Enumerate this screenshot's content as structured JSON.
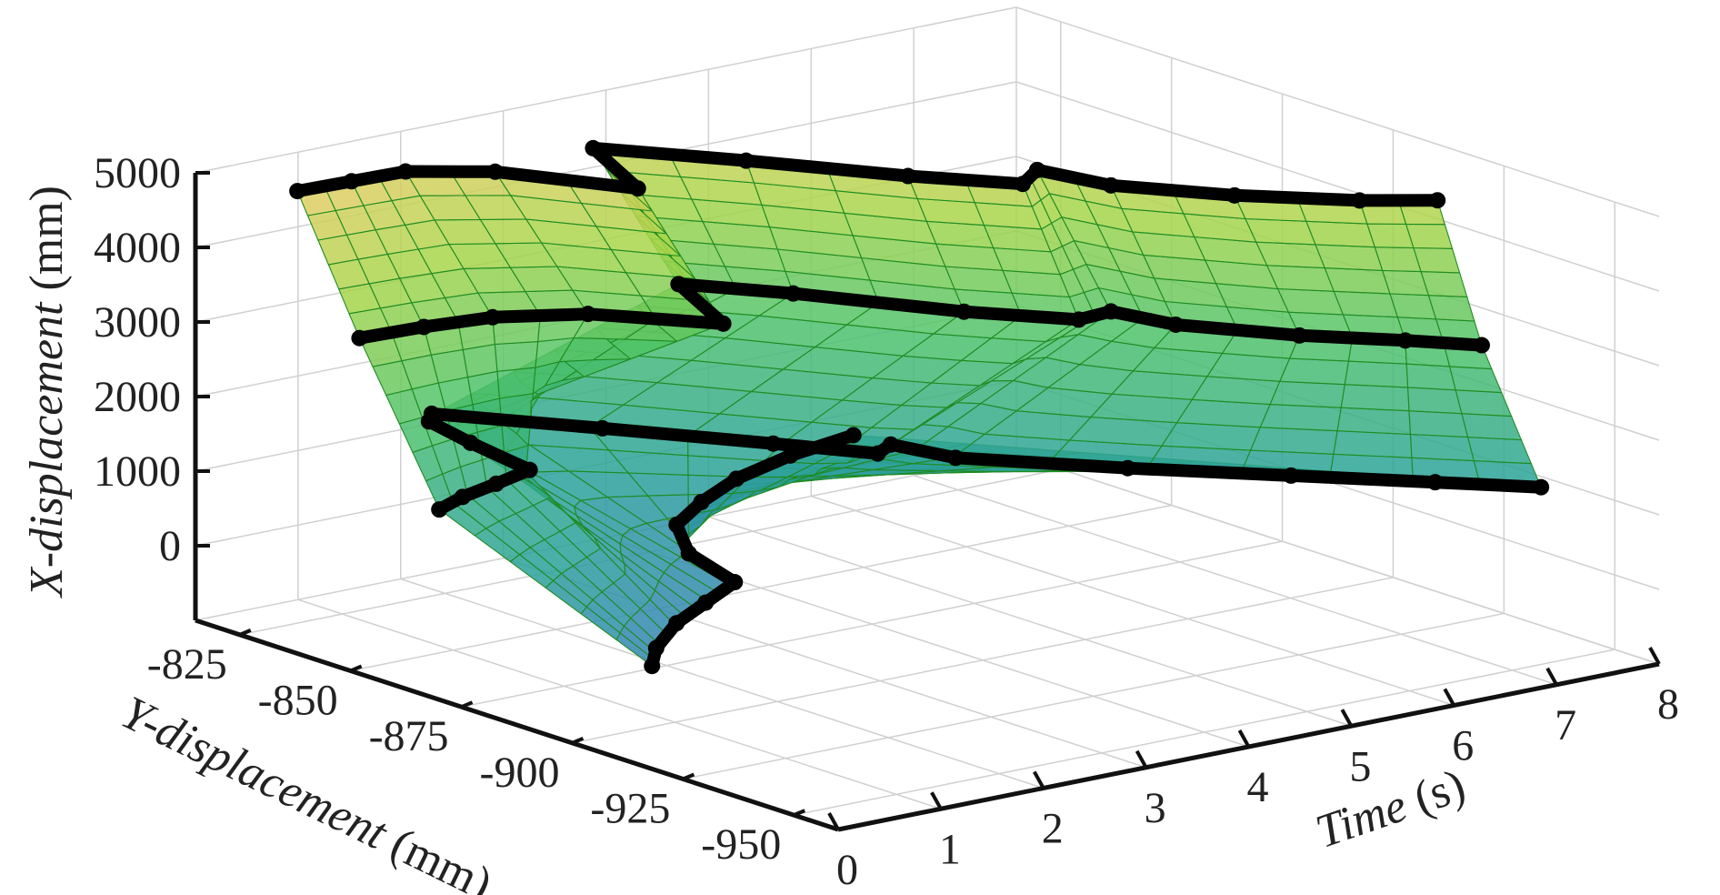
{
  "chart_data": {
    "type": "surface",
    "title": "",
    "view": "3d-isometric",
    "grid": true,
    "colormap": [
      "#3f5bd6",
      "#2aa19a",
      "#4ec26a",
      "#a8d64a",
      "#f0cb6a"
    ],
    "mesh_color": "#1f8c22",
    "trajectory_color": "#000000",
    "axes": {
      "x": {
        "label_main": "Time",
        "label_unit": " (s)",
        "ticks": [
          0,
          1,
          2,
          3,
          4,
          5,
          6,
          7,
          8
        ],
        "lim": [
          0,
          8
        ]
      },
      "y": {
        "label_main": "Y-displacement",
        "label_unit": " (mm)",
        "ticks": [
          -825,
          -850,
          -875,
          -900,
          -925,
          -950
        ],
        "lim": [
          -815,
          -960
        ]
      },
      "z": {
        "label_main": "X-displacement",
        "label_unit": " (mm)",
        "ticks": [
          0,
          1000,
          2000,
          3000,
          4000,
          5000
        ],
        "lim": [
          -1000,
          5000
        ]
      }
    },
    "trajectories": [
      {
        "name": "",
        "points": [
          [
            0.0,
            -918,
            380
          ],
          [
            0.3,
            -912,
            420
          ],
          [
            0.8,
            -905,
            480
          ],
          [
            1.3,
            -900,
            520
          ],
          [
            1.8,
            -895,
            560
          ],
          [
            2.0,
            -880,
            600
          ],
          [
            2.4,
            -868,
            640
          ],
          [
            2.9,
            -862,
            690
          ],
          [
            3.5,
            -856,
            720
          ],
          [
            4.2,
            -852,
            760
          ],
          [
            4.9,
            -850,
            800
          ]
        ]
      },
      {
        "name": "",
        "points": [
          [
            0.0,
            -870,
            1550
          ],
          [
            0.4,
            -866,
            1530
          ],
          [
            0.9,
            -862,
            1490
          ],
          [
            1.4,
            -858,
            1460
          ],
          [
            1.6,
            -840,
            1420
          ],
          [
            1.8,
            -826,
            1380
          ],
          [
            2.0,
            -822,
            1350
          ],
          [
            2.8,
            -842,
            1320
          ],
          [
            3.6,
            -862,
            1280
          ],
          [
            4.1,
            -874,
            1240
          ],
          [
            4.4,
            -870,
            1200
          ],
          [
            4.6,
            -880,
            1160
          ],
          [
            5.5,
            -898,
            1120
          ],
          [
            6.4,
            -914,
            1080
          ],
          [
            7.2,
            -928,
            1040
          ],
          [
            7.8,
            -938,
            1000
          ]
        ]
      },
      {
        "name": "",
        "points": [
          [
            0.0,
            -852,
            3500
          ],
          [
            0.8,
            -848,
            3350
          ],
          [
            1.6,
            -845,
            3200
          ],
          [
            2.4,
            -848,
            3080
          ],
          [
            3.2,
            -860,
            2960
          ],
          [
            3.8,
            -836,
            2860
          ],
          [
            4.4,
            -848,
            2800
          ],
          [
            5.2,
            -868,
            2720
          ],
          [
            5.8,
            -880,
            2680
          ],
          [
            6.2,
            -878,
            2640
          ],
          [
            6.4,
            -888,
            2600
          ],
          [
            7.0,
            -902,
            2560
          ],
          [
            7.6,
            -912,
            2520
          ],
          [
            8.0,
            -920,
            2500
          ]
        ]
      },
      {
        "name": "",
        "points": [
          [
            0.0,
            -838,
            5200
          ],
          [
            0.7,
            -834,
            5060
          ],
          [
            1.4,
            -830,
            4920
          ],
          [
            2.1,
            -834,
            4800
          ],
          [
            2.8,
            -850,
            4690
          ],
          [
            3.4,
            -826,
            4600
          ],
          [
            4.2,
            -842,
            4520
          ],
          [
            5.0,
            -860,
            4440
          ],
          [
            5.6,
            -872,
            4400
          ],
          [
            6.0,
            -866,
            4360
          ],
          [
            6.2,
            -878,
            4330
          ],
          [
            6.8,
            -892,
            4300
          ],
          [
            7.5,
            -904,
            4270
          ],
          [
            8.0,
            -910,
            4250
          ]
        ]
      }
    ]
  }
}
